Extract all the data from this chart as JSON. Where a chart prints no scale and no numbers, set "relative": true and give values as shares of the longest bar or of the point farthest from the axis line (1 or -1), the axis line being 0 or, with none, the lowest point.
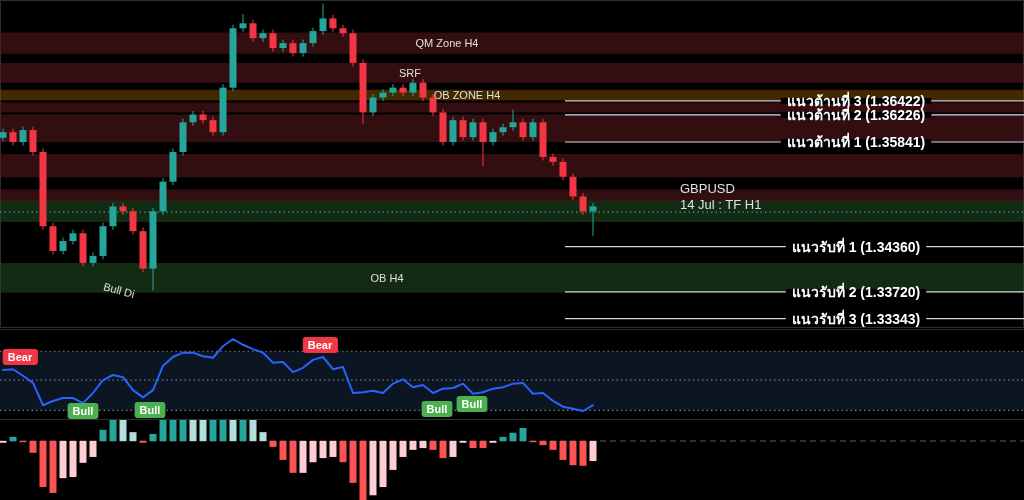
{
  "chart_data": [
    {
      "type": "candlestick",
      "categories": [
        null,
        null,
        null,
        null,
        null,
        null,
        null,
        null,
        null,
        null,
        null,
        null,
        null,
        null,
        null,
        null,
        null,
        null,
        null,
        null,
        null,
        null,
        null,
        null,
        null,
        null,
        null,
        null,
        null,
        null,
        null,
        null,
        null,
        null,
        null,
        null,
        null,
        null,
        null,
        null,
        null,
        null,
        null,
        null,
        null,
        null,
        null,
        null,
        null,
        null,
        null,
        null,
        null,
        null,
        null,
        null,
        null,
        null,
        null,
        null
      ],
      "ohlc": [
        [
          1.359,
          1.3603,
          1.3585,
          1.3598
        ],
        [
          1.3598,
          1.3603,
          1.3579,
          1.3584
        ],
        [
          1.3584,
          1.3606,
          1.3579,
          1.3601
        ],
        [
          1.3601,
          1.3606,
          1.3565,
          1.357
        ],
        [
          1.357,
          1.3575,
          1.346,
          1.3465
        ],
        [
          1.3465,
          1.347,
          1.3425,
          1.343
        ],
        [
          1.343,
          1.3449,
          1.3425,
          1.3444
        ],
        [
          1.3444,
          1.346,
          1.3439,
          1.3455
        ],
        [
          1.3455,
          1.346,
          1.3408,
          1.3413
        ],
        [
          1.3413,
          1.3428,
          1.3408,
          1.3423
        ],
        [
          1.3423,
          1.347,
          1.3418,
          1.3465
        ],
        [
          1.3465,
          1.3498,
          1.346,
          1.3493
        ],
        [
          1.3493,
          1.3498,
          1.3481,
          1.3486
        ],
        [
          1.3486,
          1.3491,
          1.3453,
          1.3458
        ],
        [
          1.3458,
          1.3463,
          1.34,
          1.3405
        ],
        [
          1.3405,
          1.3491,
          1.3374,
          1.3486
        ],
        [
          1.3486,
          1.3533,
          1.3481,
          1.3528
        ],
        [
          1.3528,
          1.3575,
          1.3523,
          1.357
        ],
        [
          1.357,
          1.3617,
          1.3565,
          1.3612
        ],
        [
          1.3612,
          1.3628,
          1.3607,
          1.3623
        ],
        [
          1.3623,
          1.3628,
          1.361,
          1.3615
        ],
        [
          1.3615,
          1.362,
          1.3593,
          1.3598
        ],
        [
          1.3598,
          1.3666,
          1.3593,
          1.3661
        ],
        [
          1.3661,
          1.375,
          1.3656,
          1.3745
        ],
        [
          1.3745,
          1.3765,
          1.374,
          1.3752
        ],
        [
          1.3752,
          1.3757,
          1.3726,
          1.3731
        ],
        [
          1.3731,
          1.3743,
          1.3726,
          1.3738
        ],
        [
          1.3738,
          1.3743,
          1.3712,
          1.3717
        ],
        [
          1.3717,
          1.3729,
          1.3712,
          1.3724
        ],
        [
          1.3724,
          1.3729,
          1.3705,
          1.371
        ],
        [
          1.371,
          1.3729,
          1.3705,
          1.3724
        ],
        [
          1.3724,
          1.3746,
          1.3719,
          1.3741
        ],
        [
          1.3741,
          1.378,
          1.3736,
          1.3759
        ],
        [
          1.3759,
          1.3764,
          1.374,
          1.3745
        ],
        [
          1.3745,
          1.375,
          1.3733,
          1.3738
        ],
        [
          1.3738,
          1.3743,
          1.3691,
          1.3696
        ],
        [
          1.3696,
          1.3701,
          1.361,
          1.3626
        ],
        [
          1.3626,
          1.3652,
          1.3621,
          1.3647
        ],
        [
          1.3647,
          1.3659,
          1.3642,
          1.3654
        ],
        [
          1.3654,
          1.3666,
          1.3649,
          1.3661
        ],
        [
          1.3661,
          1.3666,
          1.3649,
          1.3654
        ],
        [
          1.3654,
          1.3673,
          1.3649,
          1.3668
        ],
        [
          1.3668,
          1.3673,
          1.3642,
          1.3647
        ],
        [
          1.3647,
          1.3652,
          1.3621,
          1.3626
        ],
        [
          1.3626,
          1.3631,
          1.3579,
          1.3584
        ],
        [
          1.3584,
          1.362,
          1.3579,
          1.3615
        ],
        [
          1.3615,
          1.362,
          1.3586,
          1.3591
        ],
        [
          1.3591,
          1.3617,
          1.3586,
          1.3612
        ],
        [
          1.3612,
          1.3617,
          1.355,
          1.3584
        ],
        [
          1.3584,
          1.3603,
          1.3579,
          1.3598
        ],
        [
          1.3598,
          1.361,
          1.3593,
          1.3605
        ],
        [
          1.3605,
          1.363,
          1.36,
          1.3612
        ],
        [
          1.3612,
          1.3617,
          1.3586,
          1.3591
        ],
        [
          1.3591,
          1.3617,
          1.3586,
          1.3612
        ],
        [
          1.3612,
          1.3617,
          1.3558,
          1.3563
        ],
        [
          1.3563,
          1.3568,
          1.3551,
          1.3556
        ],
        [
          1.3556,
          1.3561,
          1.353,
          1.3535
        ],
        [
          1.3535,
          1.354,
          1.3502,
          1.3507
        ],
        [
          1.3507,
          1.3512,
          1.3481,
          1.3486
        ],
        [
          1.3486,
          1.3498,
          1.3451,
          1.3493
        ]
      ],
      "ylim": [
        1.3321,
        1.3785
      ],
      "bands": [
        {
          "axis": "y",
          "from": 1.3709,
          "to": 1.3739,
          "label": "QM Zone H4",
          "color": "#5c1a1f"
        },
        {
          "axis": "y",
          "from": 1.3668,
          "to": 1.3696,
          "label": "SRF",
          "color": "#5c1a1f"
        },
        {
          "axis": "y",
          "from": 1.3643,
          "to": 1.3658,
          "label": "OB ZONE H4",
          "color": "#7a4a00"
        },
        {
          "axis": "y",
          "from": 1.3626,
          "to": 1.364,
          "color": "#5c1a1f"
        },
        {
          "axis": "y",
          "from": 1.3584,
          "to": 1.3623,
          "color": "#5c1a1f"
        },
        {
          "axis": "y",
          "from": 1.3534,
          "to": 1.3567,
          "color": "#5c1a1f"
        },
        {
          "axis": "y",
          "from": 1.35,
          "to": 1.3517,
          "color": "#5c1a1f"
        },
        {
          "axis": "y",
          "from": 1.3471,
          "to": 1.3501,
          "color": "#234d23"
        },
        {
          "axis": "y",
          "from": 1.3371,
          "to": 1.3413,
          "label": "OB H4",
          "color": "#234d23"
        }
      ],
      "ref_lines": [
        {
          "axis": "y",
          "value": 1.36422,
          "label": "แนวต้านที่ 3 (1.36422)",
          "color": "#d1d4dc",
          "line_style": "solid"
        },
        {
          "axis": "y",
          "value": 1.36226,
          "label": "แนวต้านที่ 2 (1.36226)",
          "color": "#d1d4dc",
          "line_style": "solid"
        },
        {
          "axis": "y",
          "value": 1.35841,
          "label": "แนวต้านที่ 1 (1.35841)",
          "color": "#d1d4dc",
          "line_style": "solid"
        },
        {
          "axis": "y",
          "value": 1.3436,
          "label": "แนวรับที่ 1 (1.34360)",
          "color": "#d1d4dc",
          "line_style": "solid"
        },
        {
          "axis": "y",
          "value": 1.3372,
          "label": "แนวรับที่ 2 (1.33720)",
          "color": "#d1d4dc",
          "line_style": "solid"
        },
        {
          "axis": "y",
          "value": 1.33343,
          "label": "แนวรับที่ 3 (1.33343)",
          "color": "#d1d4dc",
          "line_style": "solid"
        },
        {
          "axis": "y",
          "value": 1.3485,
          "color": "#26a69a",
          "line_style": "dotted"
        }
      ],
      "annotations": [
        "GBPUSD",
        "14 Jul : TF H1",
        "Bull Di"
      ]
    },
    {
      "type": "line",
      "relative": true,
      "categories": [
        null,
        null,
        null,
        null,
        null,
        null,
        null,
        null,
        null,
        null,
        null,
        null,
        null,
        null,
        null,
        null,
        null,
        null,
        null,
        null,
        null,
        null,
        null,
        null,
        null,
        null,
        null,
        null,
        null,
        null,
        null,
        null,
        null,
        null,
        null,
        null,
        null,
        null,
        null,
        null,
        null,
        null,
        null,
        null,
        null,
        null,
        null,
        null,
        null,
        null,
        null,
        null,
        null,
        null,
        null,
        null,
        null,
        null,
        null,
        null
      ],
      "series": [
        {
          "color": "#2962ff",
          "values": [
            0.57,
            0.58,
            0.49,
            0.39,
            0.08,
            0.14,
            0.18,
            0.18,
            0.11,
            0.25,
            0.43,
            0.5,
            0.47,
            0.29,
            0.19,
            0.29,
            0.63,
            0.75,
            0.81,
            0.81,
            0.76,
            0.74,
            0.9,
            1.0,
            0.92,
            0.86,
            0.81,
            0.67,
            0.68,
            0.54,
            0.6,
            0.71,
            0.75,
            0.58,
            0.61,
            0.25,
            0.26,
            0.28,
            0.25,
            0.38,
            0.44,
            0.33,
            0.36,
            0.25,
            0.31,
            0.32,
            0.38,
            0.24,
            0.26,
            0.31,
            0.33,
            0.38,
            0.39,
            0.24,
            0.25,
            0.14,
            0.06,
            0.03,
            0.0,
            0.08
          ]
        }
      ],
      "ref_lines": [
        {
          "axis": "y",
          "value": 0.83,
          "color": "#787b86",
          "line_style": "dotted"
        },
        {
          "axis": "y",
          "value": 0.43,
          "color": "#787b86",
          "line_style": "dotted"
        },
        {
          "axis": "y",
          "value": 0.01,
          "color": "#787b86",
          "line_style": "dotted"
        }
      ],
      "bands": [
        {
          "axis": "y",
          "from": 0.01,
          "to": 0.83,
          "color": "#0b1622"
        }
      ],
      "annotations": [
        "Bear",
        "Bull",
        "Bull",
        "Bear",
        "Bull",
        "Bull"
      ]
    },
    {
      "type": "bar",
      "relative": true,
      "categories": [
        null,
        null,
        null,
        null,
        null,
        null,
        null,
        null,
        null,
        null,
        null,
        null,
        null,
        null,
        null,
        null,
        null,
        null,
        null,
        null,
        null,
        null,
        null,
        null,
        null,
        null,
        null,
        null,
        null,
        null,
        null,
        null,
        null,
        null,
        null,
        null,
        null,
        null,
        null,
        null,
        null,
        null,
        null,
        null,
        null,
        null,
        null,
        null,
        null,
        null,
        null,
        null,
        null,
        null,
        null,
        null,
        null,
        null,
        null,
        null
      ],
      "ref_lines": [
        {
          "axis": "y",
          "value": 0,
          "color": "#555a66",
          "line_style": "dashed"
        }
      ],
      "values": [
        -0.03,
        0.07,
        -0.02,
        -0.2,
        -0.78,
        -0.88,
        -0.63,
        -0.61,
        -0.37,
        -0.27,
        0.19,
        0.37,
        0.36,
        0.15,
        -0.03,
        0.12,
        0.37,
        0.37,
        0.37,
        0.37,
        0.37,
        0.37,
        0.37,
        0.37,
        0.37,
        0.36,
        0.15,
        -0.1,
        -0.32,
        -0.54,
        -0.54,
        -0.36,
        -0.29,
        -0.27,
        -0.36,
        -0.71,
        -1.0,
        -0.92,
        -0.78,
        -0.49,
        -0.27,
        -0.15,
        -0.12,
        -0.15,
        -0.29,
        -0.27,
        -0.03,
        -0.12,
        -0.12,
        -0.03,
        0.07,
        0.14,
        0.22,
        -0.02,
        -0.07,
        -0.15,
        -0.32,
        -0.41,
        -0.42,
        -0.34
      ],
      "colors": [
        "#ffcdd2",
        "#26a69a",
        "#ff5252",
        "#ff5252",
        "#ff5252",
        "#ff5252",
        "#ffcdd2",
        "#ffcdd2",
        "#ffcdd2",
        "#ffcdd2",
        "#26a69a",
        "#26a69a",
        "#b2dfdb",
        "#b2dfdb",
        "#ff5252",
        "#26a69a",
        "#26a69a",
        "#26a69a",
        "#26a69a",
        "#b2dfdb",
        "#b2dfdb",
        "#26a69a",
        "#26a69a",
        "#b2dfdb",
        "#26a69a",
        "#b2dfdb",
        "#b2dfdb",
        "#ff5252",
        "#ff5252",
        "#ff5252",
        "#ffcdd2",
        "#ffcdd2",
        "#ffcdd2",
        "#ffcdd2",
        "#ff5252",
        "#ff5252",
        "#ff5252",
        "#ffcdd2",
        "#ffcdd2",
        "#ffcdd2",
        "#ffcdd2",
        "#ffcdd2",
        "#ffcdd2",
        "#ff5252",
        "#ff5252",
        "#ffcdd2",
        "#ffcdd2",
        "#ff5252",
        "#ff5252",
        "#ffcdd2",
        "#26a69a",
        "#26a69a",
        "#26a69a",
        "#ff5252",
        "#ff5252",
        "#ff5252",
        "#ff5252",
        "#ff5252",
        "#ff5252",
        "#ffcdd2"
      ]
    }
  ]
}
